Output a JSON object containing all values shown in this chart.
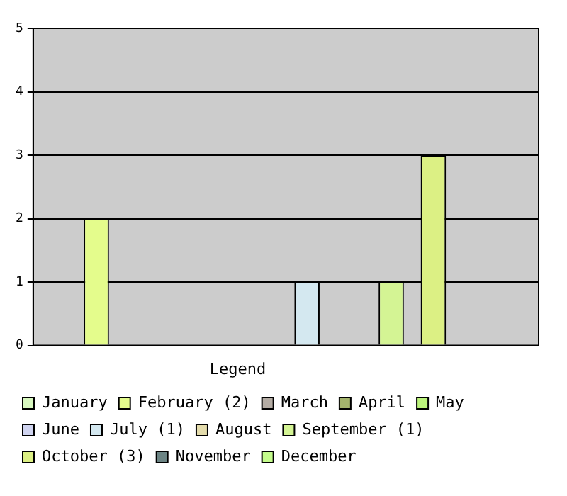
{
  "chart_data": {
    "type": "bar",
    "categories": [
      null
    ],
    "series": [
      {
        "name": "January",
        "color": "#d8f8c0",
        "values": [
          0
        ]
      },
      {
        "name": "February (2)",
        "color": "#e4fc8c",
        "values": [
          2
        ]
      },
      {
        "name": "March",
        "color": "#b4aca4",
        "values": [
          0
        ]
      },
      {
        "name": "April",
        "color": "#a4b46c",
        "values": [
          0
        ]
      },
      {
        "name": "May",
        "color": "#bcf47c",
        "values": [
          0
        ]
      },
      {
        "name": "June",
        "color": "#d0d4f0",
        "values": [
          0
        ]
      },
      {
        "name": "July (1)",
        "color": "#d4e8f0",
        "values": [
          1
        ]
      },
      {
        "name": "August",
        "color": "#e4dcac",
        "values": [
          0
        ]
      },
      {
        "name": "September (1)",
        "color": "#d4f494",
        "values": [
          1
        ]
      },
      {
        "name": "October (3)",
        "color": "#dcf084",
        "values": [
          3
        ]
      },
      {
        "name": "November",
        "color": "#6c8484",
        "values": [
          0
        ]
      },
      {
        "name": "December",
        "color": "#c4fc8c",
        "values": [
          0
        ]
      }
    ],
    "ylim": [
      0,
      5
    ],
    "yticks": [
      0,
      1,
      2,
      3,
      4,
      5
    ],
    "grid": "y",
    "tick_labels": "y",
    "legend": "bottom",
    "legend_title": "Legend"
  }
}
